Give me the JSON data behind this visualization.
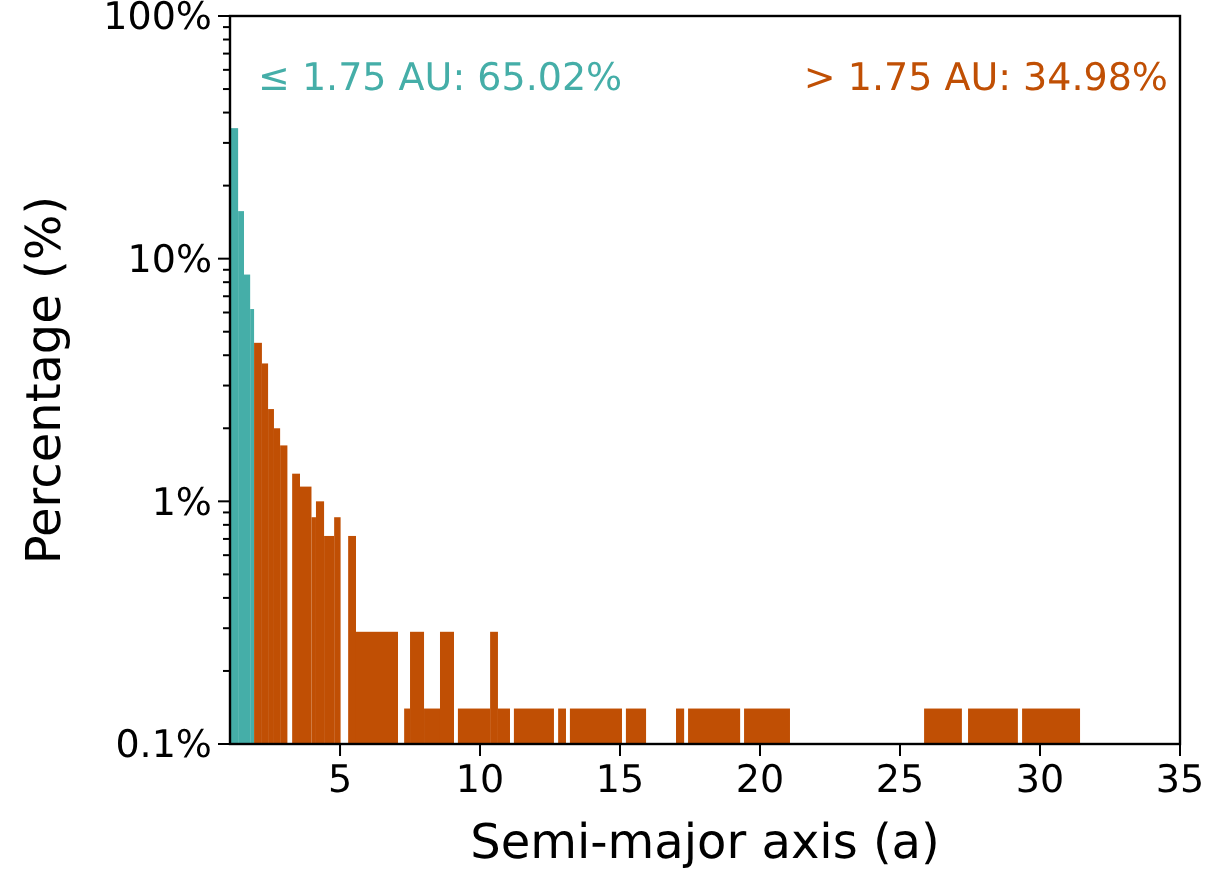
{
  "chart_data": {
    "type": "histogram",
    "xlabel": "Semi-major axis (a)",
    "ylabel": "Percentage (%)",
    "annotations": [
      "≤ 1.75 AU: 65.02%",
      "> 1.75 AU: 34.98%"
    ],
    "bins": [
      1.07,
      1.36,
      1.57,
      1.79,
      1.93,
      2.21,
      2.43,
      2.64,
      2.86,
      3.12,
      3.29,
      3.57,
      3.98,
      4.14,
      4.43,
      4.79,
      5.02,
      5.29,
      5.57,
      7.07,
      7.29,
      7.5,
      8.0,
      8.57,
      9.07,
      9.21,
      10.36,
      10.64,
      11.07,
      11.21,
      12.64,
      12.79,
      13.07,
      13.21,
      15.07,
      15.21,
      15.93,
      17.0,
      17.29,
      17.43,
      19.29,
      19.43,
      21.07,
      25.86,
      27.21,
      27.43,
      29.21,
      29.36,
      31.43
    ],
    "series": [
      {
        "color": "#45aea8",
        "values": [
          34.5,
          15.7,
          8.6,
          6.2,
          null,
          null,
          null,
          null,
          null,
          null,
          null,
          null,
          null,
          null,
          null,
          null,
          null,
          null,
          null,
          null,
          null,
          null,
          null,
          null,
          null,
          null,
          null,
          null,
          null,
          null,
          null,
          null,
          null,
          null,
          null,
          null,
          null,
          null,
          null,
          null,
          null,
          null,
          null,
          null,
          null,
          null,
          null,
          null
        ]
      },
      {
        "color": "#c04f04",
        "values": [
          null,
          null,
          null,
          null,
          4.5,
          3.7,
          2.4,
          2.0,
          1.7,
          null,
          1.3,
          1.15,
          0.86,
          1.0,
          0.72,
          0.86,
          null,
          0.72,
          0.29,
          null,
          0.14,
          0.29,
          0.14,
          0.29,
          null,
          0.14,
          0.29,
          0.14,
          null,
          0.14,
          null,
          0.14,
          null,
          0.14,
          null,
          0.14,
          null,
          0.14,
          null,
          0.14,
          null,
          0.14,
          null,
          0.14,
          null,
          0.14,
          null,
          0.14
        ]
      }
    ],
    "log": "y",
    "xlim": [
      1.07,
      35
    ],
    "ylim": [
      0.1,
      100
    ],
    "xticks": [
      5,
      10,
      15,
      20,
      25,
      30,
      35
    ],
    "yticks": [
      {
        "value": 0.1,
        "label": "0.1%"
      },
      {
        "value": 1,
        "label": "1%"
      },
      {
        "value": 10,
        "label": "10%"
      },
      {
        "value": 100,
        "label": "100%"
      }
    ]
  }
}
